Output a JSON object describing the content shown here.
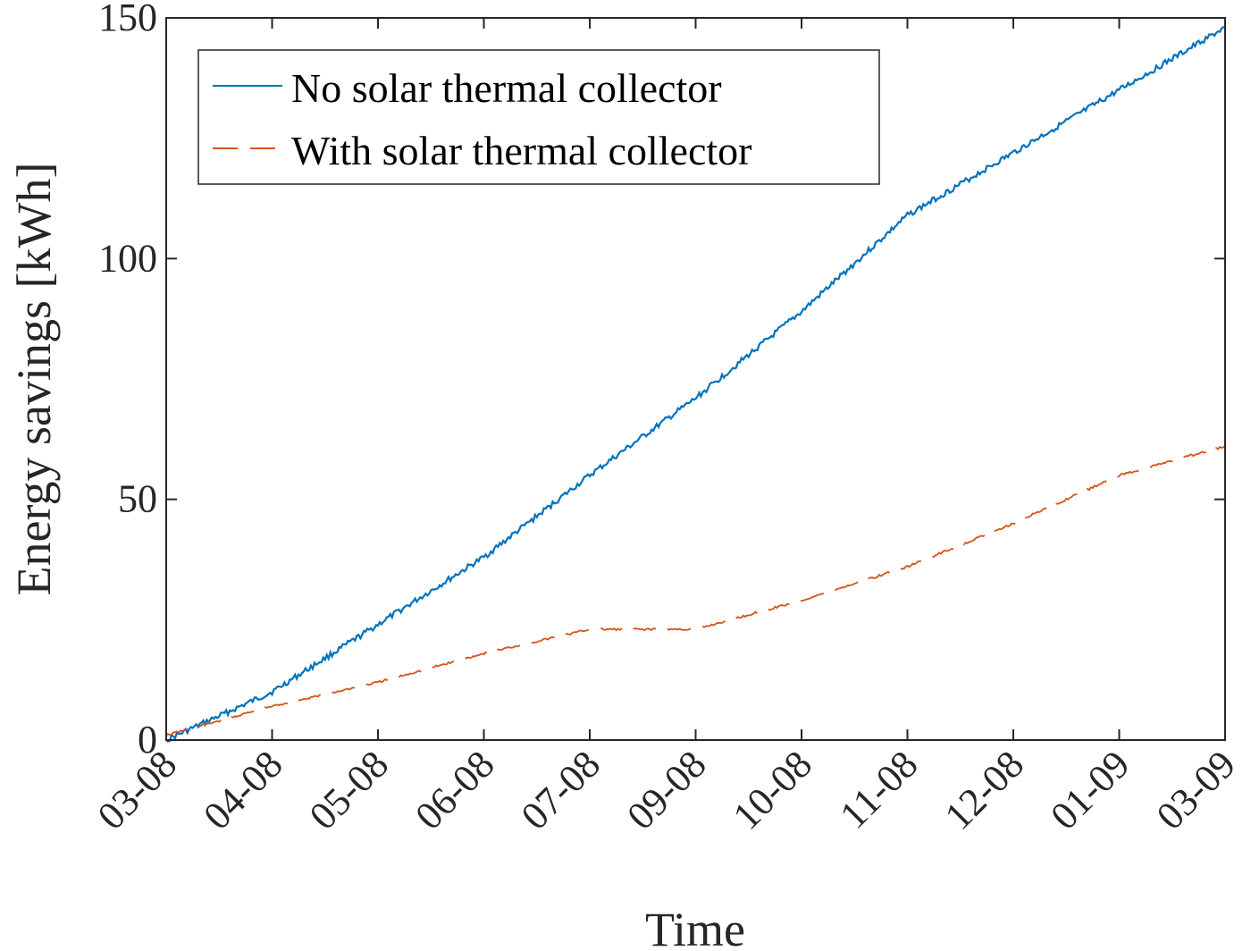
{
  "chart_data": {
    "type": "line",
    "xlabel": "Time",
    "ylabel": "Energy savings [kWh]",
    "ylim": [
      0,
      150
    ],
    "yticks": [
      0,
      50,
      100,
      150
    ],
    "xticks": [
      "03-08",
      "04-08",
      "05-08",
      "06-08",
      "07-08",
      "09-08",
      "10-08",
      "11-08",
      "12-08",
      "01-09",
      "03-09"
    ],
    "xlim": [
      "03-08",
      "03-09"
    ],
    "grid": false,
    "legend_position": "top-left",
    "series": [
      {
        "name": "No solar thermal collector",
        "color": "#0072BD",
        "style": "solid",
        "points": [
          [
            "03-08",
            0
          ],
          [
            "04-08",
            10
          ],
          [
            "05-08",
            24
          ],
          [
            "06-08",
            38
          ],
          [
            "07-08",
            55
          ],
          [
            "09-08",
            71
          ],
          [
            "10-08",
            89
          ],
          [
            "11-08",
            109
          ],
          [
            "12-08",
            122
          ],
          [
            "01-09",
            135
          ],
          [
            "03-09",
            148
          ]
        ]
      },
      {
        "name": "With solar thermal collector",
        "color": "#D95319",
        "style": "dashed",
        "points": [
          [
            "03-08",
            1
          ],
          [
            "04-08",
            7
          ],
          [
            "05-08",
            12
          ],
          [
            "06-08",
            18
          ],
          [
            "07-08",
            23
          ],
          [
            "09-08",
            23
          ],
          [
            "10-08",
            29
          ],
          [
            "11-08",
            36
          ],
          [
            "12-08",
            45
          ],
          [
            "01-09",
            55
          ],
          [
            "03-09",
            61
          ]
        ]
      }
    ]
  }
}
